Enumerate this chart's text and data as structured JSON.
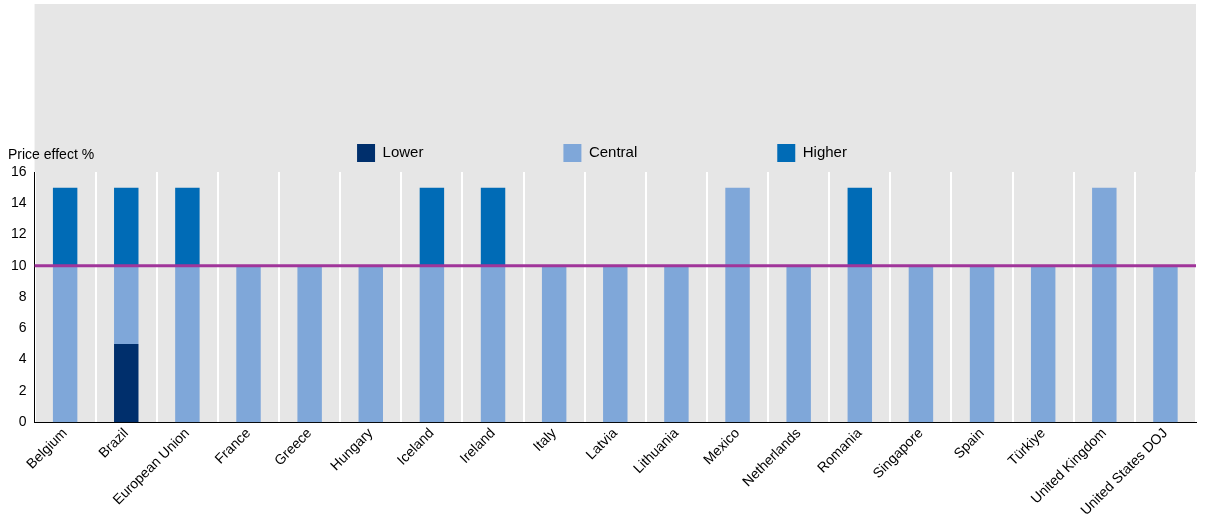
{
  "chart_data": {
    "type": "bar",
    "stacked": true,
    "ylabel": "Price effect %",
    "categories": [
      "Belgium",
      "Brazil",
      "European Union",
      "France",
      "Greece",
      "Hungary",
      "Iceland",
      "Ireland",
      "Italy",
      "Latvia",
      "Lithuania",
      "Mexico",
      "Netherlands",
      "Romania",
      "Singapore",
      "Spain",
      "Türkiye",
      "United Kingdom",
      "United States DOJ"
    ],
    "series": [
      {
        "name": "Lower",
        "color": "#002f6c",
        "values": [
          null,
          5,
          null,
          null,
          null,
          null,
          null,
          null,
          null,
          null,
          null,
          null,
          null,
          null,
          null,
          null,
          null,
          null,
          null
        ]
      },
      {
        "name": "Central",
        "color": "#7fa7d9",
        "values": [
          10,
          5,
          10,
          10,
          10,
          10,
          10,
          10,
          10,
          10,
          10,
          15,
          10,
          10,
          10,
          10,
          10,
          15,
          10
        ]
      },
      {
        "name": "Higher",
        "color": "#006bb6",
        "values": [
          5,
          5,
          5,
          null,
          null,
          null,
          5,
          5,
          null,
          null,
          null,
          null,
          null,
          5,
          null,
          null,
          null,
          null,
          null
        ]
      }
    ],
    "ylim": [
      0,
      16
    ],
    "yticks": [
      0,
      2,
      4,
      6,
      8,
      10,
      12,
      14,
      16
    ],
    "ref_lines": [
      {
        "axis": "y",
        "value": 10,
        "color": "#a0359a"
      }
    ],
    "grid": "x",
    "legend": "top"
  }
}
